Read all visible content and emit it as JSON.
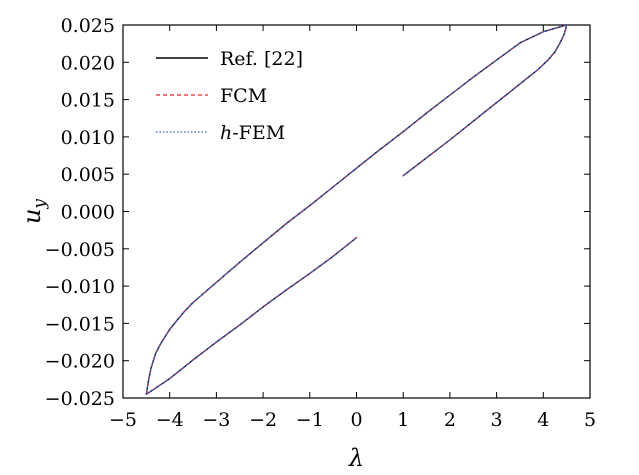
{
  "chart_data": {
    "type": "line",
    "title": "",
    "xlabel": "λ",
    "ylabel": "u_y",
    "ylabel_main": "u",
    "ylabel_sub": "y",
    "xlim": [
      -5,
      5
    ],
    "ylim": [
      -0.025,
      0.025
    ],
    "grid": false,
    "legend_position": "top-left",
    "x_ticks": [
      -5,
      -4,
      -3,
      -2,
      -1,
      0,
      1,
      2,
      3,
      4,
      5
    ],
    "x_tick_labels": [
      "−5",
      "−4",
      "−3",
      "−2",
      "−1",
      "0",
      "1",
      "2",
      "3",
      "4",
      "5"
    ],
    "y_ticks": [
      0.025,
      0.02,
      0.015,
      0.01,
      0.005,
      0.0,
      -0.005,
      -0.01,
      -0.015,
      -0.02,
      -0.025
    ],
    "y_tick_labels": [
      "0.025",
      "0.020",
      "0.015",
      "0.010",
      "0.005",
      "0.000",
      "−0.005",
      "−0.010",
      "−0.015",
      "−0.020",
      "−0.025"
    ],
    "series": [
      {
        "name": "Ref. [22]",
        "color": "#000000",
        "dash": "solid",
        "width": 1.4
      },
      {
        "name": "FCM",
        "color": "#e8202a",
        "dash": "4,3",
        "width": 1.1
      },
      {
        "name": "h-FEM",
        "color": "#3a5fc8",
        "dash": "1.5,2",
        "width": 1.1
      }
    ],
    "legend_labels": [
      {
        "italic": "",
        "text": "Ref. [22]"
      },
      {
        "italic": "",
        "text": "FCM"
      },
      {
        "italic": "h",
        "text": "-FEM"
      }
    ],
    "curve_segments": [
      {
        "label": "upper branch",
        "points": [
          [
            -4.5,
            -0.0245
          ],
          [
            -4.45,
            -0.0225
          ],
          [
            -4.4,
            -0.021
          ],
          [
            -4.3,
            -0.019
          ],
          [
            -4.2,
            -0.0178
          ],
          [
            -4.0,
            -0.0158
          ],
          [
            -3.7,
            -0.0135
          ],
          [
            -3.5,
            -0.0122
          ],
          [
            -3.0,
            -0.0095
          ],
          [
            -2.5,
            -0.0068
          ],
          [
            -2.0,
            -0.0042
          ],
          [
            -1.5,
            -0.0016
          ],
          [
            -1.0,
            0.0008
          ],
          [
            -0.5,
            0.0033
          ],
          [
            0.0,
            0.0058
          ],
          [
            0.5,
            0.0083
          ],
          [
            1.0,
            0.0107
          ],
          [
            1.5,
            0.0132
          ],
          [
            2.0,
            0.0156
          ],
          [
            2.5,
            0.018
          ],
          [
            3.0,
            0.0203
          ],
          [
            3.5,
            0.0226
          ],
          [
            4.0,
            0.0241
          ],
          [
            4.5,
            0.025
          ]
        ]
      },
      {
        "label": "right upper segment",
        "points": [
          [
            1.0,
            0.0048
          ],
          [
            1.5,
            0.0072
          ],
          [
            2.0,
            0.0096
          ],
          [
            2.5,
            0.0121
          ],
          [
            3.0,
            0.0146
          ],
          [
            3.5,
            0.0171
          ],
          [
            3.9,
            0.0191
          ],
          [
            4.1,
            0.0203
          ],
          [
            4.25,
            0.0214
          ],
          [
            4.35,
            0.0225
          ],
          [
            4.45,
            0.0238
          ],
          [
            4.5,
            0.025
          ]
        ]
      },
      {
        "label": "lower branch",
        "points": [
          [
            -4.5,
            -0.0245
          ],
          [
            -4.0,
            -0.0224
          ],
          [
            -3.5,
            -0.0199
          ],
          [
            -3.0,
            -0.0175
          ],
          [
            -2.5,
            -0.0152
          ],
          [
            -2.0,
            -0.0128
          ],
          [
            -1.5,
            -0.0105
          ],
          [
            -1.0,
            -0.0083
          ],
          [
            -0.5,
            -0.006
          ],
          [
            0.0,
            -0.0035
          ]
        ]
      }
    ]
  }
}
